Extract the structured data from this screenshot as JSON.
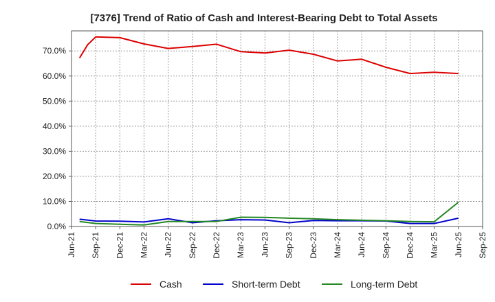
{
  "chart_data": {
    "type": "line",
    "title": "[7376]  Trend of Ratio of Cash and Interest-Bearing Debt to Total Assets",
    "xlabel": "",
    "ylabel": "",
    "x_ticks": [
      "Jun-21",
      "Sep-21",
      "Dec-21",
      "Mar-22",
      "Jun-22",
      "Sep-22",
      "Dec-22",
      "Mar-23",
      "Jun-23",
      "Sep-23",
      "Dec-23",
      "Mar-24",
      "Jun-24",
      "Sep-24",
      "Dec-24",
      "Mar-25",
      "Jun-25",
      "Sep-25"
    ],
    "y_ticks": [
      "0.0%",
      "10.0%",
      "20.0%",
      "30.0%",
      "40.0%",
      "50.0%",
      "60.0%",
      "70.0%"
    ],
    "ylim": [
      0,
      78
    ],
    "grid": true,
    "legend_position": "bottom",
    "series": [
      {
        "name": "Cash",
        "color": "#dd0000",
        "points": [
          [
            "Jul-21",
            67.2
          ],
          [
            "Aug-21",
            72.5
          ],
          [
            "Sep-21",
            75.6
          ],
          [
            "Dec-21",
            75.3
          ],
          [
            "Mar-22",
            72.8
          ],
          [
            "Jun-22",
            71.0
          ],
          [
            "Sep-22",
            71.8
          ],
          [
            "Dec-22",
            72.7
          ],
          [
            "Mar-23",
            69.7
          ],
          [
            "Jun-23",
            69.2
          ],
          [
            "Sep-23",
            70.3
          ],
          [
            "Dec-23",
            68.7
          ],
          [
            "Mar-24",
            66.0
          ],
          [
            "Jun-24",
            66.7
          ],
          [
            "Sep-24",
            63.5
          ],
          [
            "Dec-24",
            61.0
          ],
          [
            "Mar-25",
            61.5
          ],
          [
            "Jun-25",
            61.0
          ]
        ]
      },
      {
        "name": "Short-term Debt",
        "color": "#0000cc",
        "points": [
          [
            "Jul-21",
            2.9
          ],
          [
            "Sep-21",
            2.2
          ],
          [
            "Dec-21",
            2.1
          ],
          [
            "Mar-22",
            1.8
          ],
          [
            "Jun-22",
            3.1
          ],
          [
            "Sep-22",
            1.5
          ],
          [
            "Dec-22",
            2.3
          ],
          [
            "Mar-23",
            2.7
          ],
          [
            "Jun-23",
            2.6
          ],
          [
            "Sep-23",
            1.5
          ],
          [
            "Dec-23",
            2.4
          ],
          [
            "Mar-24",
            2.3
          ],
          [
            "Jun-24",
            2.3
          ],
          [
            "Sep-24",
            2.2
          ],
          [
            "Dec-24",
            1.2
          ],
          [
            "Mar-25",
            1.2
          ],
          [
            "Jun-25",
            3.3
          ]
        ]
      },
      {
        "name": "Long-term Debt",
        "color": "#228822",
        "points": [
          [
            "Jul-21",
            2.0
          ],
          [
            "Sep-21",
            1.2
          ],
          [
            "Dec-21",
            0.9
          ],
          [
            "Mar-22",
            0.6
          ],
          [
            "Jun-22",
            2.0
          ],
          [
            "Sep-22",
            2.0
          ],
          [
            "Dec-22",
            2.0
          ],
          [
            "Mar-23",
            3.7
          ],
          [
            "Jun-23",
            3.6
          ],
          [
            "Sep-23",
            3.3
          ],
          [
            "Dec-23",
            3.1
          ],
          [
            "Mar-24",
            2.7
          ],
          [
            "Jun-24",
            2.5
          ],
          [
            "Sep-24",
            2.3
          ],
          [
            "Dec-24",
            2.0
          ],
          [
            "Mar-25",
            1.9
          ],
          [
            "Jun-25",
            9.7
          ]
        ]
      }
    ]
  }
}
